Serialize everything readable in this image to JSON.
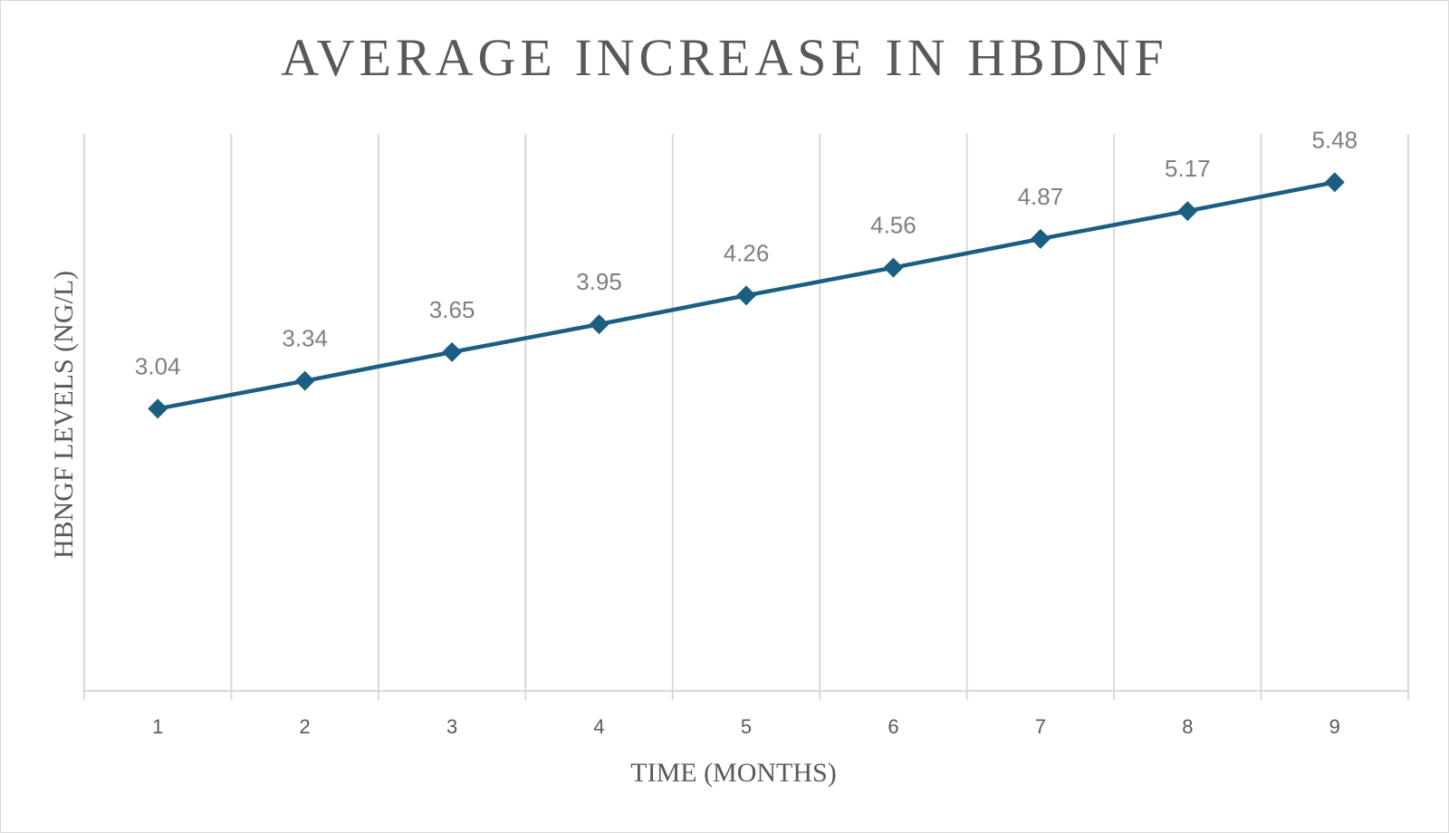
{
  "chart_data": {
    "type": "line",
    "title": "AVERAGE INCREASE IN HBDNF",
    "xlabel": "TIME (MONTHS)",
    "ylabel": "HBNGF LEVELS (NG/L)",
    "categories": [
      "1",
      "2",
      "3",
      "4",
      "5",
      "6",
      "7",
      "8",
      "9"
    ],
    "series": [
      {
        "values": [
          3.04,
          3.34,
          3.65,
          3.95,
          4.26,
          4.56,
          4.87,
          5.17,
          5.48
        ],
        "labels": [
          "3.04",
          "3.34",
          "3.65",
          "3.95",
          "4.26",
          "4.56",
          "4.87",
          "5.17",
          "5.48"
        ],
        "color": "#1b5e82",
        "marker": "diamond"
      }
    ],
    "ylim": [
      0,
      6
    ],
    "grid": "vertical",
    "data_labels": true,
    "legend": "none"
  }
}
